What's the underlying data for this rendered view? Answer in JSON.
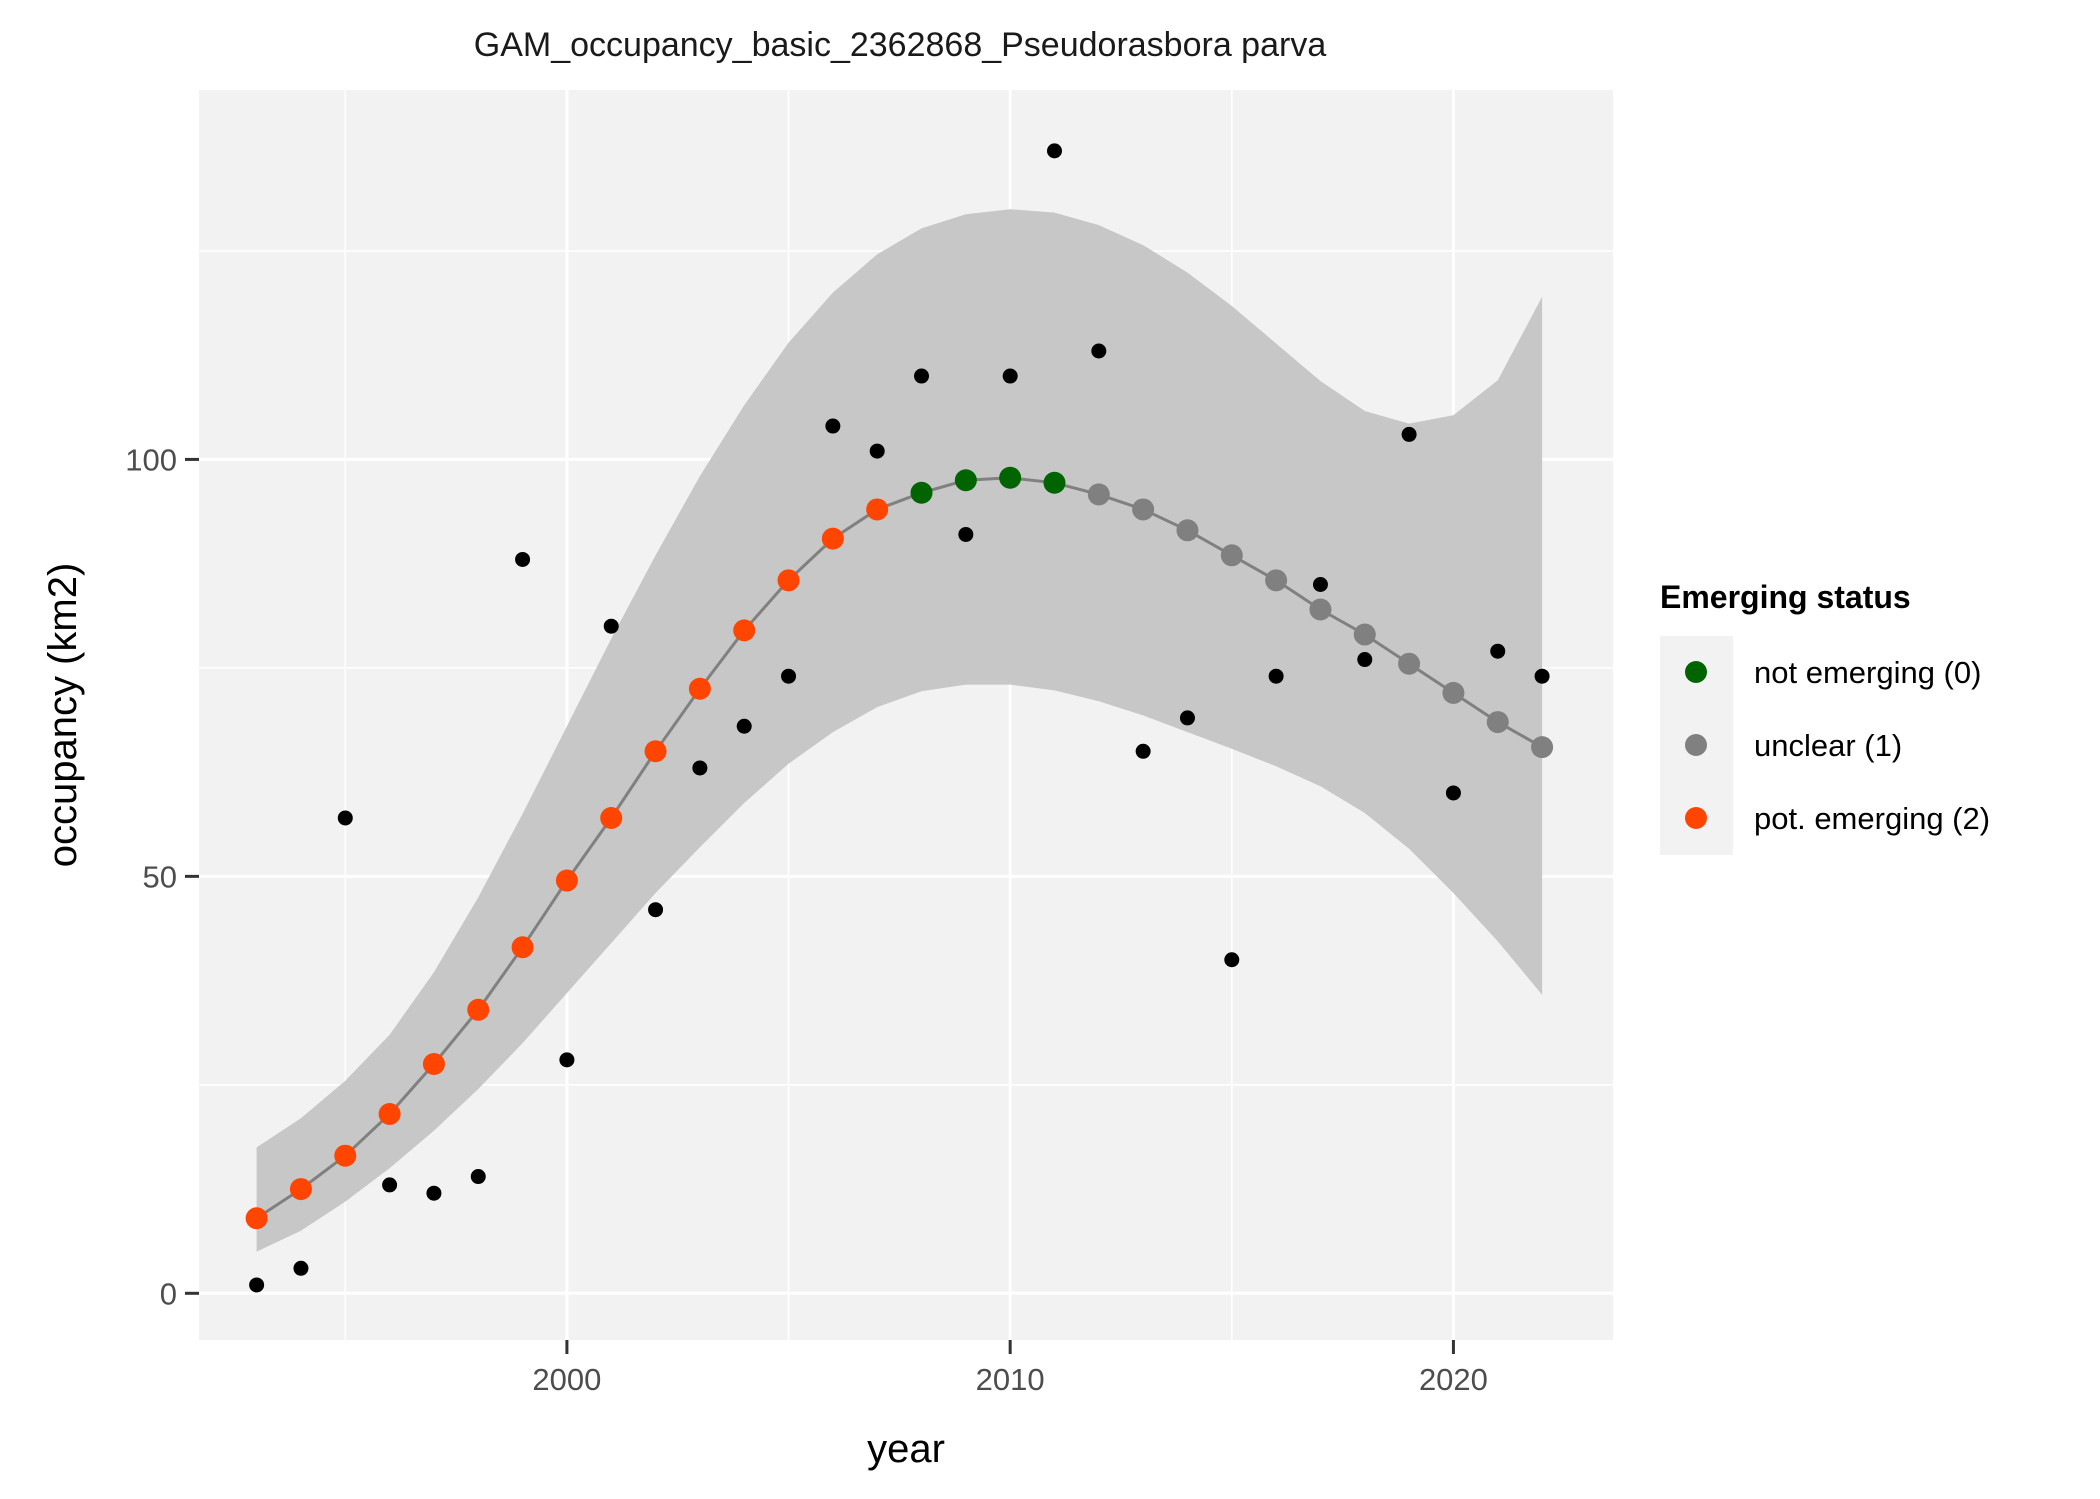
{
  "chart_data": {
    "type": "scatter",
    "title": "GAM_occupancy_basic_2362868_Pseudorasbora parva",
    "xlabel": "year",
    "ylabel": "occupancy (km2)",
    "xlim": [
      1991.7,
      2023.6
    ],
    "ylim": [
      -5.6,
      144.3
    ],
    "x_ticks": [
      2000,
      2010,
      2020
    ],
    "x_tick_labels": [
      "2000",
      "2010",
      "2020"
    ],
    "y_ticks": [
      0,
      50,
      100
    ],
    "y_tick_labels": [
      "0",
      "50",
      "100"
    ],
    "grid": true,
    "background": "#f2f2f2",
    "grid_color": "#ffffff",
    "legend": {
      "title": "Emerging status",
      "position": "right",
      "entries": [
        {
          "label": "not emerging (0)",
          "color": "#006400"
        },
        {
          "label": "unclear (1)",
          "color": "#808080"
        },
        {
          "label": "pot. emerging (2)",
          "color": "#ff4500"
        }
      ]
    },
    "observed": {
      "color": "#000000",
      "points": [
        [
          1993,
          1
        ],
        [
          1994,
          3
        ],
        [
          1995,
          57
        ],
        [
          1996,
          13
        ],
        [
          1997,
          12
        ],
        [
          1998,
          14
        ],
        [
          1999,
          88
        ],
        [
          2000,
          28
        ],
        [
          2001,
          80
        ],
        [
          2002,
          46
        ],
        [
          2003,
          63
        ],
        [
          2004,
          68
        ],
        [
          2005,
          74
        ],
        [
          2006,
          104
        ],
        [
          2007,
          101
        ],
        [
          2008,
          110
        ],
        [
          2009,
          91
        ],
        [
          2010,
          110
        ],
        [
          2011,
          137
        ],
        [
          2012,
          113
        ],
        [
          2013,
          65
        ],
        [
          2014,
          69
        ],
        [
          2015,
          40
        ],
        [
          2016,
          74
        ],
        [
          2017,
          85
        ],
        [
          2018,
          76
        ],
        [
          2019,
          103
        ],
        [
          2020,
          60
        ],
        [
          2021,
          77
        ],
        [
          2022,
          74
        ]
      ]
    },
    "fit": {
      "line_color": "#808080",
      "band_color": "#c4c4c4",
      "x": [
        1993,
        1994,
        1995,
        1996,
        1997,
        1998,
        1999,
        2000,
        2001,
        2002,
        2003,
        2004,
        2005,
        2006,
        2007,
        2008,
        2009,
        2010,
        2011,
        2012,
        2013,
        2014,
        2015,
        2016,
        2017,
        2018,
        2019,
        2020,
        2021,
        2022
      ],
      "y": [
        9,
        12.5,
        16.5,
        21.5,
        27.5,
        34,
        41.5,
        49.5,
        57,
        65,
        72.5,
        79.5,
        85.5,
        90.5,
        94,
        96,
        97.5,
        97.8,
        97.2,
        95.8,
        94,
        91.5,
        88.5,
        85.5,
        82,
        79,
        75.5,
        72,
        68.5,
        65.5
      ],
      "lower": [
        5,
        7.5,
        11,
        15,
        19.5,
        24.5,
        30,
        36,
        42,
        48,
        53.5,
        58.8,
        63.5,
        67.3,
        70.3,
        72.2,
        73,
        73,
        72.3,
        71,
        69.3,
        67.3,
        65.3,
        63.2,
        60.8,
        57.6,
        53.3,
        48,
        42.2,
        35.8
      ],
      "upper": [
        17.5,
        21,
        25.5,
        31,
        38.5,
        47.5,
        57.5,
        68,
        78.5,
        88.5,
        98,
        106.5,
        114,
        120,
        124.6,
        127.7,
        129.4,
        130,
        129.6,
        128.1,
        125.7,
        122.4,
        118.4,
        113.9,
        109.4,
        105.8,
        104.3,
        105.3,
        109.5,
        119.5
      ],
      "status": [
        2,
        2,
        2,
        2,
        2,
        2,
        2,
        2,
        2,
        2,
        2,
        2,
        2,
        2,
        2,
        0,
        0,
        0,
        0,
        1,
        1,
        1,
        1,
        1,
        1,
        1,
        1,
        1,
        1,
        1
      ]
    }
  }
}
